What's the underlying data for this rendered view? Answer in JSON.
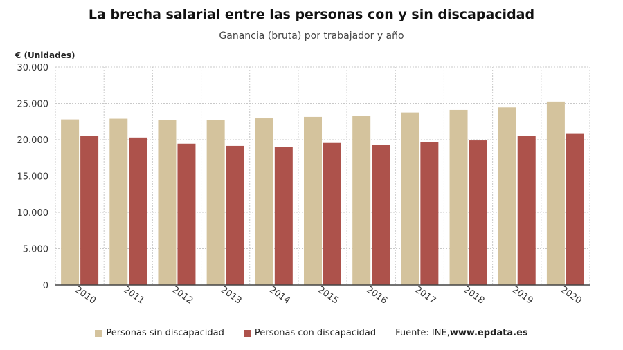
{
  "colors": {
    "sin": "#d4c39d",
    "con": "#ad524b",
    "grid": "#c8c8c8",
    "axis": "#444444"
  },
  "legend": {
    "sin_label": "Personas sin discapacidad",
    "con_label": "Personas con discapacidad",
    "source_prefix": "Fuente: INE, ",
    "source_site": "www.epdata.es"
  },
  "chart_data": {
    "type": "bar",
    "title": "La brecha salarial entre las personas con y sin discapacidad",
    "subtitle": "Ganancia (bruta) por trabajador y año",
    "ylabel": "€ (Unidades)",
    "xlabel": "",
    "ylim": [
      0,
      30000
    ],
    "yticks": [
      "0",
      "5.000",
      "10.000",
      "15.000",
      "20.000",
      "25.000",
      "30.000"
    ],
    "ytick_values": [
      0,
      5000,
      10000,
      15000,
      20000,
      25000,
      30000
    ],
    "grid": true,
    "legend_position": "bottom",
    "categories": [
      "2010",
      "2011",
      "2012",
      "2013",
      "2014",
      "2015",
      "2016",
      "2017",
      "2018",
      "2019",
      "2020"
    ],
    "series": [
      {
        "name": "Personas sin discapacidad",
        "values": [
          22800,
          22900,
          22750,
          22750,
          22950,
          23150,
          23250,
          23750,
          24100,
          24450,
          25250
        ]
      },
      {
        "name": "Personas con discapacidad",
        "values": [
          20550,
          20300,
          19450,
          19150,
          19000,
          19550,
          19250,
          19700,
          19900,
          20550,
          20800
        ]
      }
    ]
  }
}
